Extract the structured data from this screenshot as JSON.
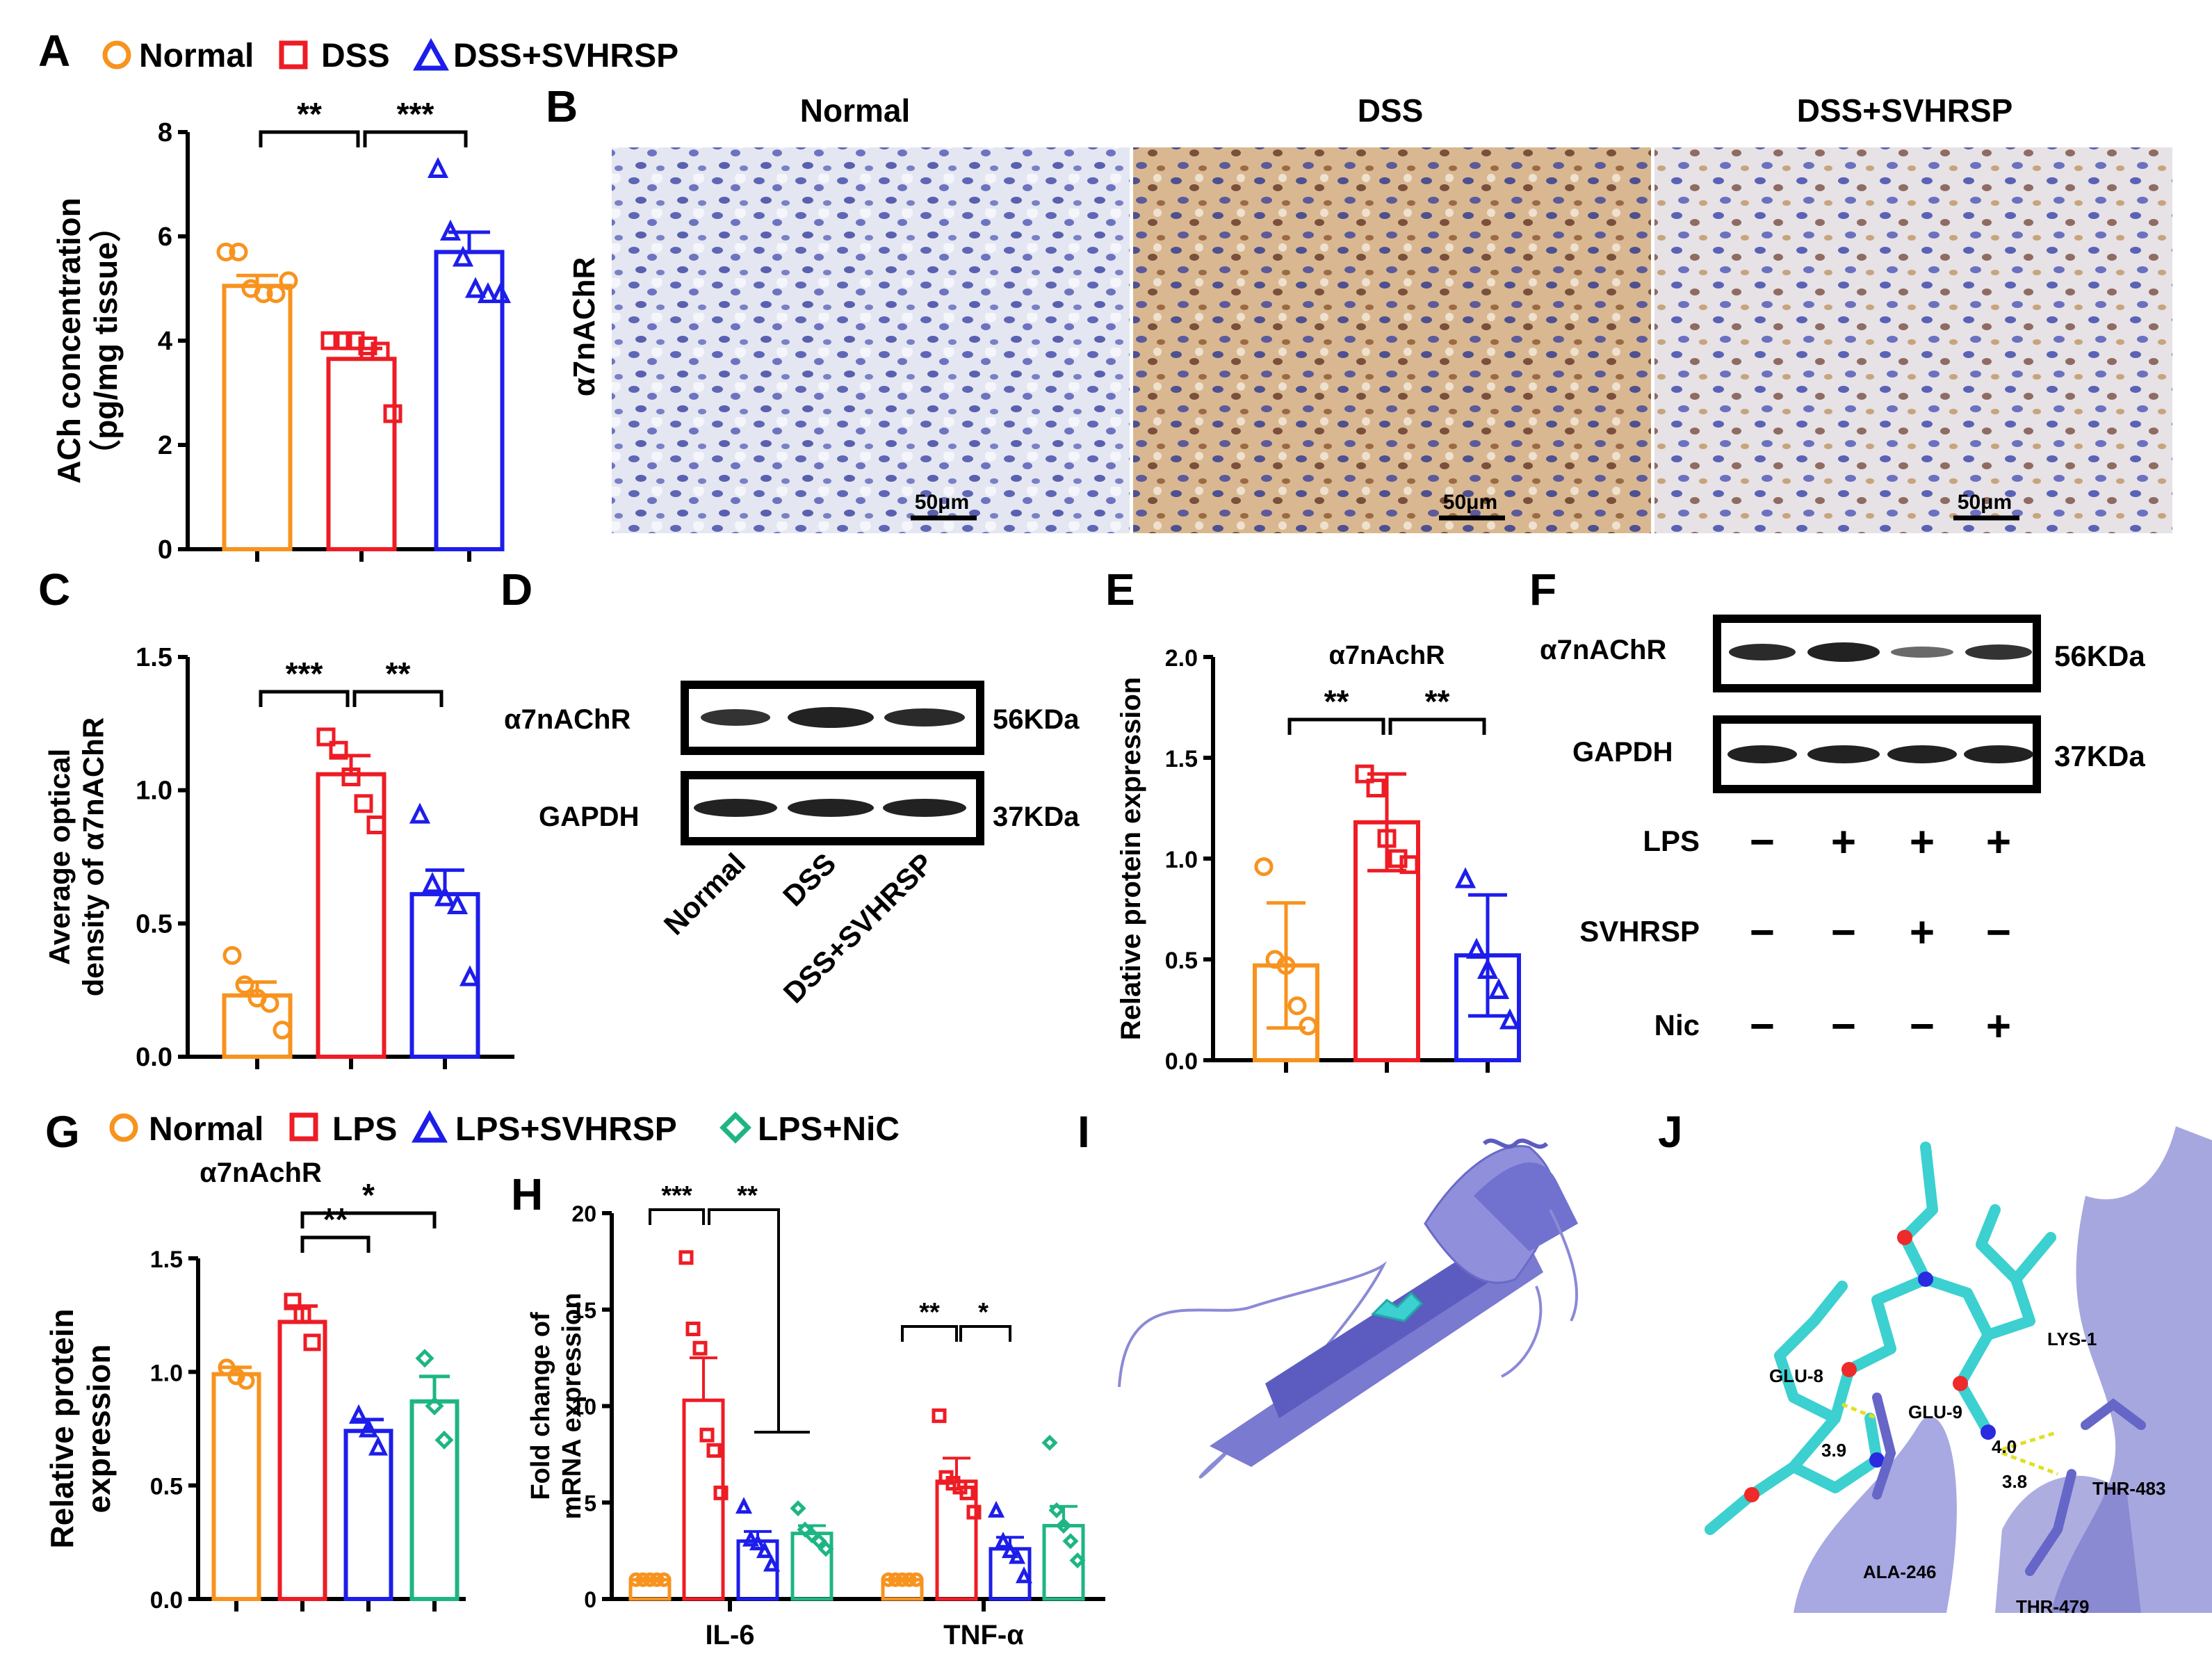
{
  "colors": {
    "normal": "#F7931E",
    "dss": "#EE1C25",
    "svhrsp": "#1D1DEB",
    "nic": "#1EB584",
    "ihc_bg": "#dfe3ee",
    "protein": "#8a8ad6",
    "ligand": "#3cd0d0"
  },
  "panel_labels": [
    "A",
    "B",
    "C",
    "D",
    "E",
    "F",
    "G",
    "H",
    "I",
    "J"
  ],
  "legend_A": [
    "Normal",
    "DSS",
    "DSS+SVHRSP"
  ],
  "legend_G": [
    "Normal",
    "LPS",
    "LPS+SVHRSP",
    "LPS+NiC"
  ],
  "panel_B": {
    "columns": [
      "Normal",
      "DSS",
      "DSS+SVHRSP"
    ],
    "row_label": "α7nAChR",
    "scale_bar": "50μm"
  },
  "panel_D": {
    "rows": [
      "α7nAChR",
      "GAPDH"
    ],
    "sizes": [
      "56KDa",
      "37KDa"
    ],
    "lanes": [
      "Normal",
      "DSS",
      "DSS+SVHRSP"
    ]
  },
  "panel_F": {
    "rows": [
      "α7nAChR",
      "GAPDH"
    ],
    "sizes": [
      "56KDa",
      "37KDa"
    ],
    "conditions": [
      {
        "name": "LPS",
        "signs": [
          "−",
          "+",
          "+",
          "+"
        ]
      },
      {
        "name": "SVHRSP",
        "signs": [
          "−",
          "−",
          "+",
          "−"
        ]
      },
      {
        "name": "Nic",
        "signs": [
          "−",
          "−",
          "−",
          "+"
        ]
      }
    ]
  },
  "panel_I": {
    "description_label": ""
  },
  "panel_J": {
    "residues": [
      "LYS-1",
      "GLU-8",
      "GLU-9",
      "THR-483",
      "ALA-246",
      "THR-479"
    ],
    "distances": [
      "3.9",
      "4.0",
      "3.8"
    ]
  },
  "chart_data": [
    {
      "panel": "A",
      "type": "bar",
      "ylabel": "ACh concentration",
      "ylabel2": "（pg/mg tissue）",
      "ylim": [
        0,
        8
      ],
      "yticks": [
        0,
        2,
        4,
        6,
        8
      ],
      "categories": [
        "Normal",
        "DSS",
        "DSS+SVHRSP"
      ],
      "values": [
        5.05,
        3.65,
        5.7
      ],
      "errors": [
        0.2,
        0.2,
        0.38
      ],
      "points": [
        [
          5.7,
          5.7,
          5.0,
          4.9,
          4.9,
          5.15
        ],
        [
          4.0,
          4.0,
          4.0,
          3.9,
          3.8,
          2.6
        ],
        [
          7.3,
          6.1,
          5.6,
          5.0,
          4.9,
          4.9
        ]
      ],
      "markers": [
        "circle",
        "square",
        "triangle"
      ],
      "significance": [
        {
          "from": 0,
          "to": 1,
          "label": "**"
        },
        {
          "from": 1,
          "to": 2,
          "label": "***"
        }
      ]
    },
    {
      "panel": "C",
      "type": "bar",
      "ylabel": "Average optical",
      "ylabel2": "density of α7nAChR",
      "ylim": [
        0,
        1.5
      ],
      "yticks": [
        "0.0",
        "0.5",
        "1.0",
        "1.5"
      ],
      "categories": [
        "Normal",
        "DSS",
        "DSS+SVHRSP"
      ],
      "values": [
        0.23,
        1.06,
        0.61
      ],
      "errors": [
        0.05,
        0.07,
        0.09
      ],
      "points": [
        [
          0.38,
          0.27,
          0.22,
          0.2,
          0.1
        ],
        [
          1.2,
          1.15,
          1.05,
          0.95,
          0.87
        ],
        [
          0.91,
          0.65,
          0.6,
          0.57,
          0.3
        ]
      ],
      "markers": [
        "circle",
        "square",
        "triangle"
      ],
      "significance": [
        {
          "from": 0,
          "to": 1,
          "label": "***"
        },
        {
          "from": 1,
          "to": 2,
          "label": "**"
        }
      ]
    },
    {
      "panel": "E",
      "type": "bar",
      "title": "α7nAchR",
      "ylabel": "Relative protein expression",
      "ylim": [
        0,
        2.0
      ],
      "yticks": [
        "0.0",
        "0.5",
        "1.0",
        "1.5",
        "2.0"
      ],
      "categories": [
        "Normal",
        "DSS",
        "DSS+SVHRSP"
      ],
      "values": [
        0.47,
        1.18,
        0.52
      ],
      "errors": [
        0.31,
        0.24,
        0.3
      ],
      "points": [
        [
          0.96,
          0.5,
          0.47,
          0.27,
          0.17
        ],
        [
          1.42,
          1.35,
          1.1,
          1.0,
          0.97
        ],
        [
          0.9,
          0.55,
          0.45,
          0.35,
          0.2
        ]
      ],
      "markers": [
        "circle",
        "square",
        "triangle"
      ],
      "significance": [
        {
          "from": 0,
          "to": 1,
          "label": "**"
        },
        {
          "from": 1,
          "to": 2,
          "label": "**"
        }
      ]
    },
    {
      "panel": "G",
      "type": "bar",
      "title": "α7nAchR",
      "ylabel": "Relative protein",
      "ylabel2": "expression",
      "ylim": [
        0,
        1.5
      ],
      "yticks": [
        "0.0",
        "0.5",
        "1.0",
        "1.5"
      ],
      "categories": [
        "Normal",
        "LPS",
        "LPS+SVHRSP",
        "LPS+NiC"
      ],
      "values": [
        0.99,
        1.22,
        0.74,
        0.87
      ],
      "errors": [
        0.03,
        0.07,
        0.05,
        0.11
      ],
      "points": [
        [
          1.02,
          0.98,
          0.96
        ],
        [
          1.31,
          1.25,
          1.13
        ],
        [
          0.81,
          0.75,
          0.67
        ],
        [
          1.06,
          0.85,
          0.7
        ]
      ],
      "markers": [
        "circle",
        "square",
        "triangle",
        "diamond"
      ],
      "significance": [
        {
          "from": 1,
          "to": 2,
          "label": "**"
        },
        {
          "from": 1,
          "to": 3,
          "label": "*"
        }
      ]
    },
    {
      "panel": "H",
      "type": "bar",
      "ylabel": "Fold change of",
      "ylabel2": "mRNA expression",
      "ylim": [
        0,
        20
      ],
      "yticks": [
        0,
        5,
        10,
        15,
        20
      ],
      "groups": [
        "IL-6",
        "TNF-α"
      ],
      "series": [
        {
          "name": "Normal",
          "values": [
            1.0,
            1.0
          ],
          "errors": [
            0.05,
            0.05
          ],
          "points": [
            [
              1,
              1,
              1,
              1,
              1
            ],
            [
              1,
              1,
              1,
              1,
              1
            ]
          ]
        },
        {
          "name": "LPS",
          "values": [
            10.3,
            6.1
          ],
          "errors": [
            2.2,
            1.2
          ],
          "points": [
            [
              17.7,
              14.0,
              13.0,
              8.5,
              7.7,
              5.5
            ],
            [
              9.5,
              6.3,
              6.0,
              5.8,
              5.5,
              4.5
            ]
          ]
        },
        {
          "name": "LPS+SVHRSP",
          "values": [
            3.0,
            2.6
          ],
          "errors": [
            0.5,
            0.6
          ],
          "points": [
            [
              4.8,
              3.1,
              2.9,
              2.5,
              1.8
            ],
            [
              4.6,
              3.0,
              2.5,
              2.2,
              1.2
            ]
          ]
        },
        {
          "name": "LPS+NiC",
          "values": [
            3.4,
            3.8
          ],
          "errors": [
            0.4,
            1.0
          ],
          "points": [
            [
              4.7,
              3.6,
              3.3,
              3.0,
              2.6
            ],
            [
              8.1,
              4.6,
              3.8,
              3.0,
              2.0
            ]
          ]
        }
      ],
      "markers": [
        "circle",
        "square",
        "triangle",
        "diamond"
      ],
      "significance": [
        {
          "group": 0,
          "from": 0,
          "to": 1,
          "label": "***"
        },
        {
          "group": 0,
          "from": 1,
          "to": "2-3",
          "label": "**"
        },
        {
          "group": 1,
          "from": 0,
          "to": 1,
          "label": "**"
        },
        {
          "group": 1,
          "from": 1,
          "to": 2,
          "label": "*"
        }
      ]
    }
  ]
}
